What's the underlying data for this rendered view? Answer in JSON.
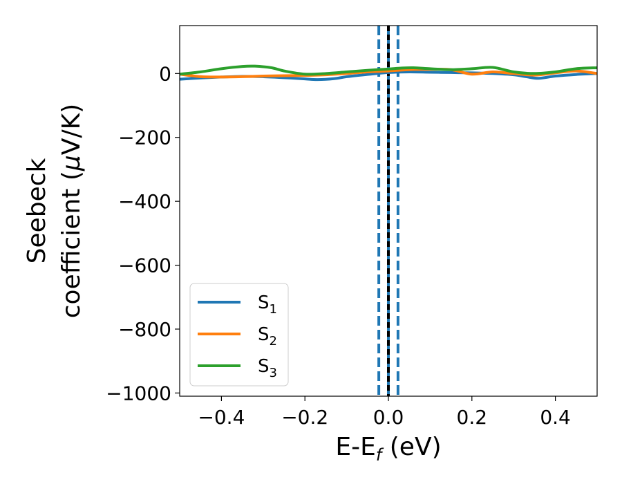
{
  "chart_data": {
    "type": "line",
    "xlabel": {
      "main": "E-E",
      "sub": "f",
      "tail": " (eV)"
    },
    "ylabel": {
      "line1": "Seebeck",
      "line2_pre": "coefficient  (",
      "mu": "μ",
      "line2_post": "V/K)"
    },
    "xlim": [
      -0.5,
      0.5
    ],
    "ylim": [
      -1010,
      150
    ],
    "xticks": [
      -0.4,
      -0.2,
      0.0,
      0.2,
      0.4
    ],
    "xtick_labels": [
      "−0.4",
      "−0.2",
      "0.0",
      "0.2",
      "0.4"
    ],
    "yticks": [
      0,
      -200,
      -400,
      -600,
      -800,
      -1000
    ],
    "ytick_labels": [
      "0",
      "−200",
      "−400",
      "−600",
      "−800",
      "−1000"
    ],
    "vlines": [
      {
        "x": -0.023,
        "style": "dashed",
        "color": "#1f77b4"
      },
      {
        "x": 0.0,
        "style": "solid",
        "color": "#1f77b4"
      },
      {
        "x": 0.0,
        "style": "dashed",
        "color": "#000000"
      },
      {
        "x": 0.023,
        "style": "dashed",
        "color": "#1f77b4"
      }
    ],
    "legend_position": "lower-left",
    "series": [
      {
        "name": "S",
        "sub": "1",
        "color": "#1f77b4",
        "x": [
          -0.5,
          -0.45,
          -0.4,
          -0.35,
          -0.3,
          -0.25,
          -0.2,
          -0.17,
          -0.13,
          -0.1,
          -0.05,
          0.0,
          0.05,
          0.1,
          0.15,
          0.2,
          0.25,
          0.3,
          0.33,
          0.36,
          0.4,
          0.45,
          0.5
        ],
        "y": [
          -18,
          -14,
          -11,
          -9,
          -10,
          -13,
          -17,
          -19,
          -16,
          -10,
          -3,
          3,
          5,
          4,
          3,
          2,
          0,
          -4,
          -10,
          -15,
          -8,
          -3,
          0
        ]
      },
      {
        "name": "S",
        "sub": "2",
        "color": "#ff7f0e",
        "x": [
          -0.5,
          -0.45,
          -0.4,
          -0.35,
          -0.3,
          -0.25,
          -0.2,
          -0.15,
          -0.1,
          -0.05,
          0.0,
          0.05,
          0.1,
          0.15,
          0.2,
          0.25,
          0.3,
          0.35,
          0.4,
          0.45,
          0.5
        ],
        "y": [
          -2,
          -10,
          -11,
          -10,
          -8,
          -7,
          -6,
          -4,
          0,
          5,
          8,
          12,
          13,
          12,
          -2,
          5,
          0,
          -5,
          2,
          8,
          0
        ]
      },
      {
        "name": "S",
        "sub": "3",
        "color": "#2ca02c",
        "x": [
          -0.5,
          -0.45,
          -0.4,
          -0.35,
          -0.32,
          -0.28,
          -0.25,
          -0.2,
          -0.15,
          -0.1,
          -0.05,
          0.0,
          0.03,
          0.06,
          0.1,
          0.15,
          0.2,
          0.25,
          0.3,
          0.35,
          0.4,
          0.45,
          0.5
        ],
        "y": [
          -2,
          5,
          15,
          22,
          23,
          18,
          8,
          -2,
          0,
          5,
          10,
          14,
          17,
          18,
          15,
          12,
          15,
          19,
          5,
          0,
          5,
          15,
          18
        ]
      }
    ]
  }
}
